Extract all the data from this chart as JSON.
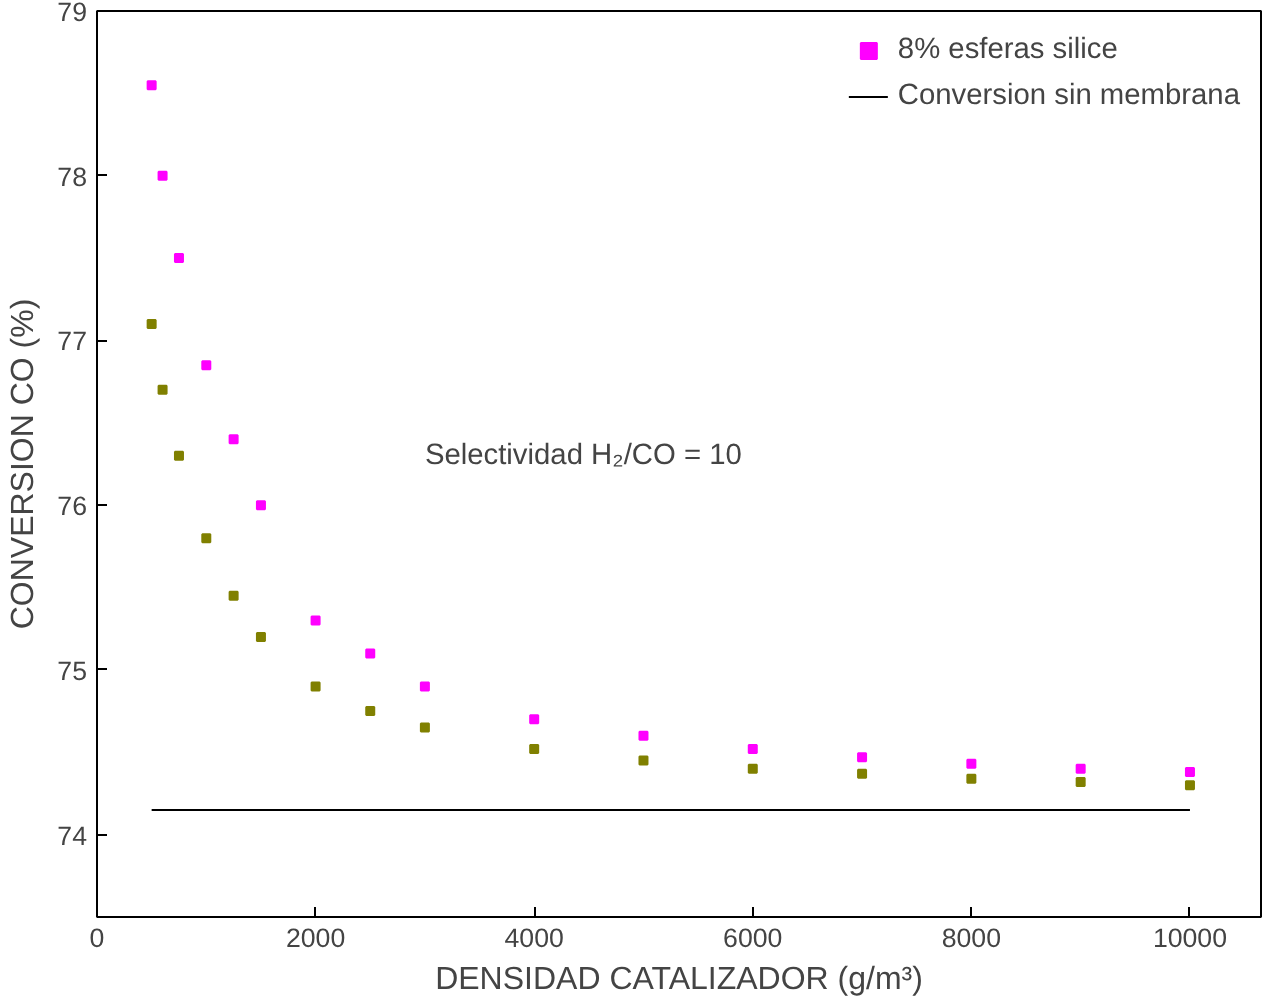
{
  "chart_data": {
    "type": "scatter",
    "xlabel": "DENSIDAD CATALIZADOR (g/m³)",
    "ylabel": "CONVERSION CO (%)",
    "xlim": [
      0,
      10650
    ],
    "ylim": [
      73.5,
      79
    ],
    "xticks": [
      0,
      2000,
      4000,
      6000,
      8000,
      10000
    ],
    "yticks": [
      74,
      75,
      76,
      77,
      78,
      79
    ],
    "grid": false,
    "legend": "top right",
    "marker": "square",
    "annotations": [
      "Selectividad H₂/CO = 10"
    ],
    "series": [
      {
        "color": "#808000",
        "x": [
          500,
          600,
          750,
          1000,
          1250,
          1500,
          2000,
          2500,
          3000,
          4000,
          5000,
          6000,
          7000,
          8000,
          9000,
          10000
        ],
        "values": [
          77.1,
          76.7,
          76.3,
          75.8,
          75.45,
          75.2,
          74.9,
          74.75,
          74.65,
          74.52,
          74.45,
          74.4,
          74.37,
          74.34,
          74.32,
          74.3
        ]
      },
      {
        "name": "8% esferas silice",
        "color": "#ff00ff",
        "x": [
          500,
          600,
          750,
          1000,
          1250,
          1500,
          2000,
          2500,
          3000,
          4000,
          5000,
          6000,
          7000,
          8000,
          9000,
          10000
        ],
        "values": [
          78.55,
          78.0,
          77.5,
          76.85,
          76.4,
          76.0,
          75.3,
          75.1,
          74.9,
          74.7,
          74.6,
          74.52,
          74.47,
          74.43,
          74.4,
          74.38
        ]
      },
      {
        "name": "Conversion sin membrana",
        "type": "line",
        "color": "#000000",
        "marker": "none",
        "line_style": "solid",
        "x": [
          500,
          10000
        ],
        "values": [
          74.15,
          74.15
        ]
      }
    ]
  }
}
